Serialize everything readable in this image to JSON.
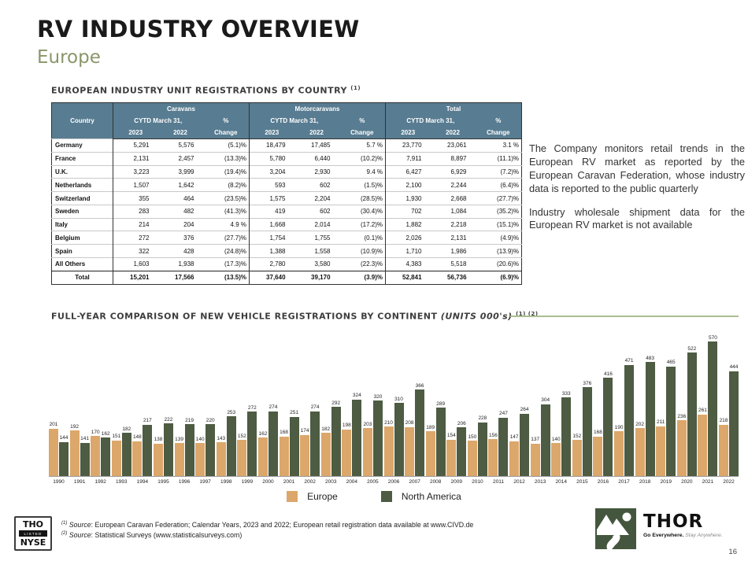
{
  "page": {
    "title": "RV INDUSTRY OVERVIEW",
    "subtitle": "Europe",
    "page_number": "16"
  },
  "table_section": {
    "heading": "EUROPEAN INDUSTRY UNIT REGISTRATIONS BY COUNTRY",
    "heading_sup": "(1)",
    "columns": {
      "country": "Country",
      "groups": [
        "Caravans",
        "Motorcaravans",
        "Total"
      ],
      "cytd": "CYTD March 31,",
      "pct": "%",
      "change": "Change",
      "years": [
        "2023",
        "2022"
      ]
    },
    "rows": [
      {
        "country": "Germany",
        "values": [
          "5,291",
          "5,576",
          "(5.1)%",
          "18,479",
          "17,485",
          "5.7 %",
          "23,770",
          "23,061",
          "3.1 %"
        ]
      },
      {
        "country": "France",
        "values": [
          "2,131",
          "2,457",
          "(13.3)%",
          "5,780",
          "6,440",
          "(10.2)%",
          "7,911",
          "8,897",
          "(11.1)%"
        ]
      },
      {
        "country": "U.K.",
        "values": [
          "3,223",
          "3,999",
          "(19.4)%",
          "3,204",
          "2,930",
          "9.4 %",
          "6,427",
          "6,929",
          "(7.2)%"
        ]
      },
      {
        "country": "Netherlands",
        "values": [
          "1,507",
          "1,642",
          "(8.2)%",
          "593",
          "602",
          "(1.5)%",
          "2,100",
          "2,244",
          "(6.4)%"
        ]
      },
      {
        "country": "Switzerland",
        "values": [
          "355",
          "464",
          "(23.5)%",
          "1,575",
          "2,204",
          "(28.5)%",
          "1,930",
          "2,668",
          "(27.7)%"
        ]
      },
      {
        "country": "Sweden",
        "values": [
          "283",
          "482",
          "(41.3)%",
          "419",
          "602",
          "(30.4)%",
          "702",
          "1,084",
          "(35.2)%"
        ]
      },
      {
        "country": "Italy",
        "values": [
          "214",
          "204",
          "4.9 %",
          "1,668",
          "2,014",
          "(17.2)%",
          "1,882",
          "2,218",
          "(15.1)%"
        ]
      },
      {
        "country": "Belgium",
        "values": [
          "272",
          "376",
          "(27.7)%",
          "1,754",
          "1,755",
          "(0.1)%",
          "2,026",
          "2,131",
          "(4.9)%"
        ]
      },
      {
        "country": "Spain",
        "values": [
          "322",
          "428",
          "(24.8)%",
          "1,388",
          "1,558",
          "(10.9)%",
          "1,710",
          "1,986",
          "(13.9)%"
        ]
      },
      {
        "country": "All Others",
        "values": [
          "1,603",
          "1,938",
          "(17.3)%",
          "2,780",
          "3,580",
          "(22.3)%",
          "4,383",
          "5,518",
          "(20.6)%"
        ]
      }
    ],
    "total_row": {
      "country": "Total",
      "values": [
        "15,201",
        "17,566",
        "(13.5)%",
        "37,640",
        "39,170",
        "(3.9)%",
        "52,841",
        "56,736",
        "(6.9)%"
      ]
    }
  },
  "commentary": {
    "para1": "The Company monitors retail trends in the European RV market as reported by the European Caravan Federation, whose industry data is reported to the public quarterly",
    "para2": "Industry wholesale shipment data for the European RV market is not available"
  },
  "chart_section": {
    "heading": "FULL-YEAR COMPARISON OF NEW VEHICLE REGISTRATIONS BY CONTINENT",
    "units_label": "(UNITS 000's)",
    "heading_sup": "(1) (2)"
  },
  "chart_data": {
    "type": "bar",
    "title": "FULL-YEAR COMPARISON OF NEW VEHICLE REGISTRATIONS BY CONTINENT (UNITS 000's)",
    "categories": [
      "1990",
      "1991",
      "1992",
      "1993",
      "1994",
      "1995",
      "1996",
      "1997",
      "1998",
      "1999",
      "2000",
      "2001",
      "2002",
      "2003",
      "2004",
      "2005",
      "2006",
      "2007",
      "2008",
      "2009",
      "2010",
      "2011",
      "2012",
      "2013",
      "2014",
      "2015",
      "2016",
      "2017",
      "2018",
      "2019",
      "2020",
      "2021",
      "2022"
    ],
    "series": [
      {
        "name": "Europe",
        "color": "#DCA76B",
        "values": [
          201,
          192,
          170,
          151,
          148,
          138,
          139,
          140,
          143,
          152,
          162,
          168,
          174,
          182,
          198,
          203,
          210,
          208,
          189,
          154,
          150,
          156,
          147,
          137,
          140,
          152,
          168,
          190,
          202,
          211,
          236,
          261,
          218
        ]
      },
      {
        "name": "North America",
        "color": "#4D5C42",
        "values": [
          144,
          141,
          162,
          182,
          217,
          222,
          219,
          220,
          253,
          272,
          274,
          251,
          274,
          292,
          324,
          320,
          310,
          366,
          289,
          206,
          228,
          247,
          264,
          304,
          333,
          376,
          416,
          471,
          483,
          465,
          522,
          570,
          444
        ]
      }
    ],
    "xlabel": "",
    "ylabel": "",
    "ylim": [
      0,
      600
    ],
    "grid": false,
    "legend_position": "bottom",
    "data_labels": true
  },
  "footer": {
    "nyse_badge": {
      "top": "THO",
      "middle": "LISTED",
      "bottom": "NYSE"
    },
    "footnote1": {
      "sup": "(1)",
      "source_label": "Source",
      "text": ": European Caravan Federation; Calendar Years, 2023 and 2022; European retail registration data available at www.CIVD.de"
    },
    "footnote2": {
      "sup": "(2)",
      "source_label": "Source",
      "text": ": Statistical Surveys (www.statisticalsurveys.com)"
    },
    "thor": {
      "name": "THOR",
      "tagline_bold": "Go Everywhere.",
      "tagline_light": " Stay Anywhere."
    }
  }
}
